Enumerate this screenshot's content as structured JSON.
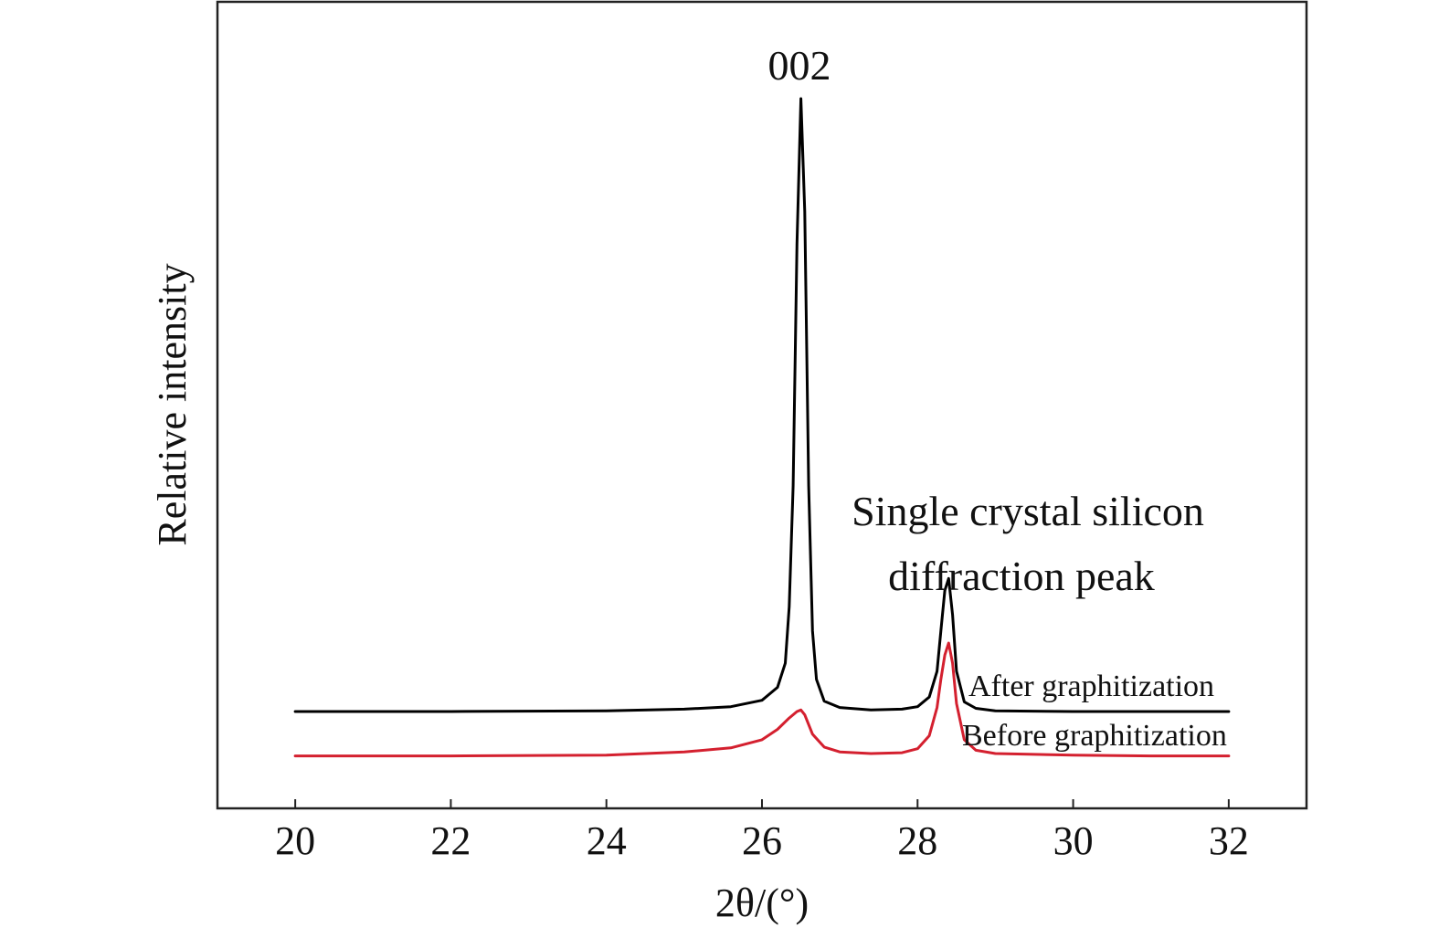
{
  "chart_data": {
    "type": "line",
    "title": "",
    "xlabel": "2θ/(°)",
    "ylabel": "Relative intensity",
    "xlim": [
      19,
      33
    ],
    "ylim": [
      0,
      100
    ],
    "xticks": [
      20,
      22,
      24,
      26,
      28,
      30,
      32
    ],
    "grid": false,
    "colors": {
      "after": "#000000",
      "before": "#d4202f"
    },
    "annotations": [
      {
        "text": "002",
        "x": 26.5
      },
      {
        "text": "Single crystal silicon",
        "x": 28.4
      },
      {
        "text": "diffraction peak",
        "x": 28.4
      }
    ],
    "series": [
      {
        "name": "After graphitization",
        "color": "#000000",
        "x": [
          20,
          22,
          24,
          25,
          25.6,
          26.0,
          26.2,
          26.3,
          26.35,
          26.4,
          26.45,
          26.5,
          26.55,
          26.6,
          26.65,
          26.7,
          26.8,
          27.0,
          27.4,
          27.8,
          28.0,
          28.15,
          28.25,
          28.3,
          28.35,
          28.4,
          28.45,
          28.5,
          28.6,
          28.75,
          29.0,
          30,
          31,
          32
        ],
        "y": [
          12,
          12,
          12.1,
          12.3,
          12.6,
          13.4,
          15,
          18,
          25,
          40,
          70,
          88,
          74,
          40,
          22,
          16,
          13.3,
          12.5,
          12.2,
          12.3,
          12.6,
          13.8,
          17,
          22,
          27,
          28.5,
          24,
          17,
          13.2,
          12.4,
          12.1,
          12,
          12,
          12
        ]
      },
      {
        "name": "Before graphitization",
        "color": "#d4202f",
        "x": [
          20,
          22,
          24,
          25,
          25.6,
          26.0,
          26.2,
          26.35,
          26.45,
          26.5,
          26.55,
          26.65,
          26.8,
          27.0,
          27.4,
          27.8,
          28.0,
          28.15,
          28.25,
          28.3,
          28.35,
          28.4,
          28.45,
          28.5,
          28.6,
          28.75,
          29.0,
          30,
          31,
          32
        ],
        "y": [
          6.5,
          6.5,
          6.6,
          7.0,
          7.5,
          8.5,
          9.8,
          11.2,
          12.0,
          12.2,
          11.6,
          9.2,
          7.6,
          7.0,
          6.8,
          6.9,
          7.4,
          9.0,
          12.5,
          16,
          19,
          20.5,
          18,
          13,
          8.5,
          7.2,
          6.8,
          6.6,
          6.5,
          6.5
        ]
      }
    ]
  }
}
